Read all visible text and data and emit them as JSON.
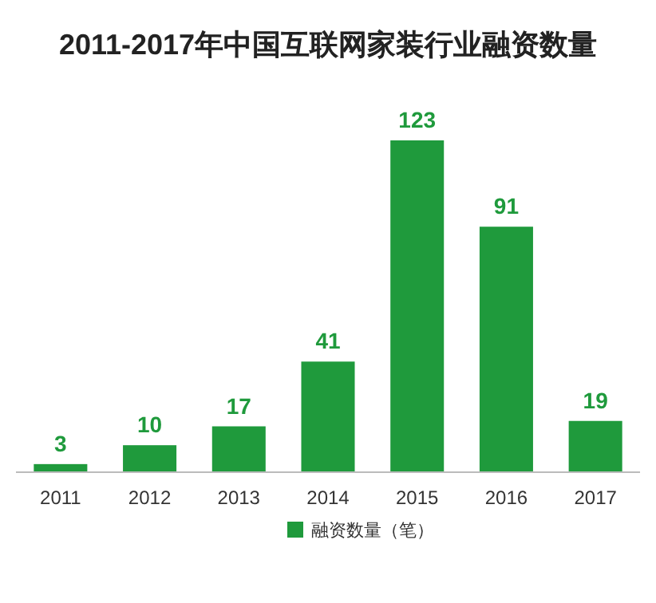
{
  "chart_data": {
    "type": "bar",
    "title": "2011-2017年中国互联网家装行业融资数量",
    "categories": [
      "2011",
      "2012",
      "2013",
      "2014",
      "2015",
      "2016",
      "2017"
    ],
    "series": [
      {
        "name": "融资数量（笔）",
        "color": "#1f9a3c",
        "values": [
          3,
          10,
          17,
          41,
          123,
          91,
          19
        ]
      }
    ],
    "data_labels": true,
    "legend": "bottom"
  }
}
